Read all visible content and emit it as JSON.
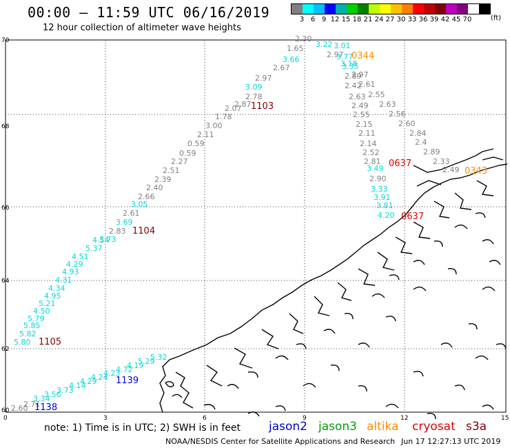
{
  "title": "00:00 – 11:59 UTC 06/16/2019",
  "subtitle": "12 hour collection of altimeter wave heights",
  "legend": {
    "unit": "(ft)",
    "colors": [
      "#808080",
      "#00ffff",
      "#00c0ff",
      "#0000ff",
      "#00b0b0",
      "#00d000",
      "#008000",
      "#c0ff00",
      "#ffff00",
      "#ffc000",
      "#ff8000",
      "#ff0000",
      "#c00000",
      "#800000",
      "#c000c0",
      "#800080",
      "#ffffff",
      "#000000"
    ],
    "labels": [
      "3",
      "6",
      "9",
      "12",
      "15",
      "18",
      "21",
      "24",
      "27",
      "30",
      "33",
      "36",
      "39",
      "42",
      "45",
      "70"
    ]
  },
  "axes": {
    "lat_labels": [
      "70",
      "68",
      "66",
      "64",
      "62",
      "60"
    ],
    "lon_labels": [
      "0",
      "3",
      "6",
      "9",
      "12",
      "15"
    ]
  },
  "tracks": [
    {
      "color": "#808080",
      "labels": [
        "2.60",
        "2.71"
      ]
    },
    {
      "color": "#00d8d8",
      "labels": [
        "3.34",
        "3.56",
        "3.73",
        "4.14",
        "4.29",
        "4.24",
        "4.23",
        "4.72",
        "4.19",
        "5.29",
        "5.32"
      ]
    },
    {
      "color": "#00d8d8",
      "labels": [
        "5.80",
        "5.82",
        "5.85",
        "5.79",
        "4.50",
        "5.21",
        "4.95",
        "4.34",
        "4.31",
        "4.93",
        "4.29",
        "4.51",
        "5.37",
        "4.54",
        "3.73",
        "3.69",
        "3.05"
      ]
    },
    {
      "color": "#808080",
      "labels": [
        "2.83",
        "2.61",
        "2.66",
        "2.40",
        "2.39",
        "2.51",
        "2.27",
        "0.59",
        "0.59",
        "2.11",
        "3.00",
        "1.78",
        "2.07",
        "2.87",
        "2.78",
        "2.97",
        "2.67",
        "1.65",
        "2.30"
      ]
    },
    {
      "color": "#00d8d8",
      "labels": [
        "3.09",
        "3.66",
        "3.22",
        "3.01"
      ]
    },
    {
      "color": "#808080",
      "labels": [
        "2.97",
        "2.97",
        "2.89",
        "2.42",
        "2.61",
        "2.63",
        "2.55",
        "2.49",
        "2.63",
        "2.55",
        "2.56",
        "2.15",
        "2.60",
        "2.11",
        "2.84",
        "2.14",
        "2.4",
        "2.52",
        "2.89",
        "2.81",
        "2.33",
        "2.49"
      ]
    },
    {
      "color": "#00d8d8",
      "labels": [
        "3.77",
        "3.18",
        "3.35",
        "3.49",
        "3.33",
        "3.91",
        "3.81",
        "4.20"
      ]
    },
    {
      "color": "#808080",
      "labels": [
        "2.90"
      ]
    }
  ],
  "times": [
    {
      "text": "1138",
      "color": "#0000cc"
    },
    {
      "text": "1139",
      "color": "#0000cc"
    },
    {
      "text": "1105",
      "color": "#800000"
    },
    {
      "text": "1104",
      "color": "#800000"
    },
    {
      "text": "1103",
      "color": "#800000"
    },
    {
      "text": "0344",
      "color": "#ff8c00"
    },
    {
      "text": "0637",
      "color": "#dd0000"
    },
    {
      "text": "0637",
      "color": "#dd0000"
    },
    {
      "text": "0343",
      "color": "#ff8c00"
    }
  ],
  "note": "note: 1) Time is in UTC; 2) SWH is in feet",
  "satellites": [
    {
      "name": "jason2",
      "color": "#0000cc"
    },
    {
      "name": "jason3",
      "color": "#00a000"
    },
    {
      "name": "altika",
      "color": "#ff8c00"
    },
    {
      "name": "cryosat",
      "color": "#dd0000"
    },
    {
      "name": "s3a",
      "color": "#800000"
    }
  ],
  "credit": "NOAA/NESDIS Center for Satellite Applications and Research",
  "generated": "Jun 17 12:27:13 UTC 2019"
}
